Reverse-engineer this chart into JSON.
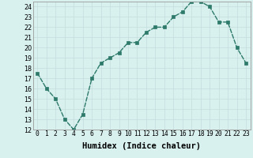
{
  "x": [
    0,
    1,
    2,
    3,
    4,
    5,
    6,
    7,
    8,
    9,
    10,
    11,
    12,
    13,
    14,
    15,
    16,
    17,
    18,
    19,
    20,
    21,
    22,
    23
  ],
  "y": [
    17.5,
    16.0,
    15.0,
    13.0,
    12.0,
    13.5,
    17.0,
    18.5,
    19.0,
    19.5,
    20.5,
    20.5,
    21.5,
    22.0,
    22.0,
    23.0,
    23.5,
    24.5,
    24.5,
    24.0,
    22.5,
    22.5,
    20.0,
    18.5
  ],
  "line_color": "#2d7a6a",
  "marker": "s",
  "markersize": 2.2,
  "linewidth": 1.0,
  "bg_color": "#d8f0ee",
  "grid_major_color": "#c4dedd",
  "grid_minor_color": "#d0e8e6",
  "xlim": [
    -0.5,
    23.5
  ],
  "ylim": [
    12,
    24.5
  ],
  "yticks": [
    12,
    13,
    14,
    15,
    16,
    17,
    18,
    19,
    20,
    21,
    22,
    23,
    24
  ],
  "xtick_labels": [
    "0",
    "1",
    "2",
    "3",
    "4",
    "5",
    "6",
    "7",
    "8",
    "9",
    "10",
    "11",
    "12",
    "13",
    "14",
    "15",
    "16",
    "17",
    "18",
    "19",
    "20",
    "21",
    "22",
    "23"
  ],
  "xlabel": "Humidex (Indice chaleur)",
  "xlabel_fontsize": 7.5,
  "tick_fontsize": 5.8
}
